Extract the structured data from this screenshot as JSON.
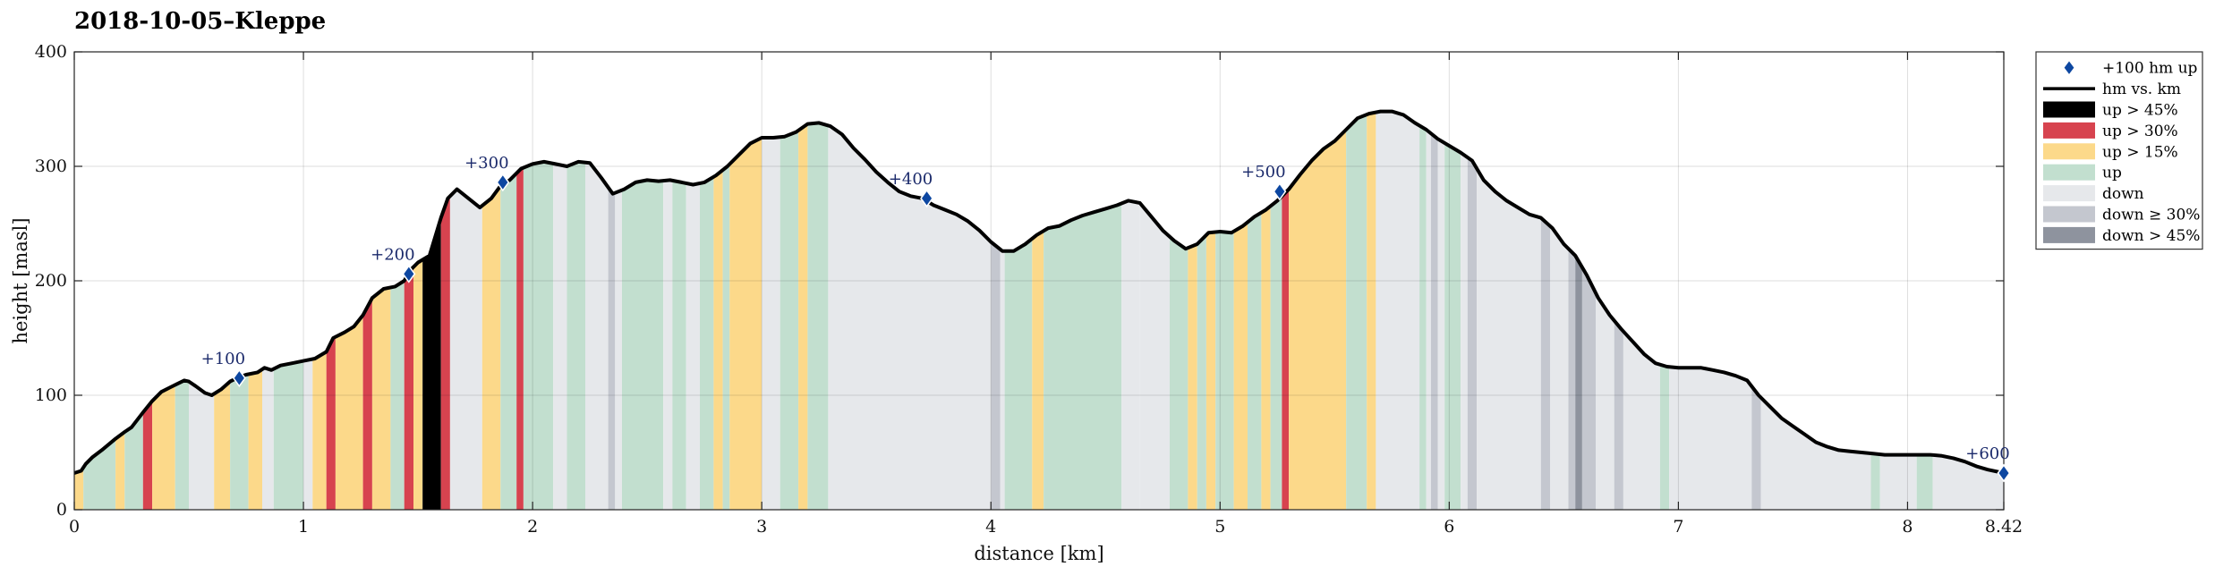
{
  "chart_data": {
    "type": "area",
    "title": "2018-10-05–Kleppe",
    "xlabel": "distance [km]",
    "ylabel": "height [masl]",
    "xlim": [
      0,
      8.42
    ],
    "ylim": [
      0,
      400
    ],
    "x_ticks": [
      0,
      1,
      2,
      3,
      4,
      5,
      6,
      7,
      8,
      8.42
    ],
    "x_tick_labels": [
      "0",
      "1",
      "2",
      "3",
      "4",
      "5",
      "6",
      "7",
      "8",
      "8.42"
    ],
    "y_ticks": [
      0,
      100,
      200,
      300,
      400
    ],
    "y_tick_labels": [
      "0",
      "100",
      "200",
      "300",
      "400"
    ],
    "grid": true,
    "legend_position": "outside-right-top",
    "legend": [
      {
        "label": "+100 hm up",
        "kind": "marker",
        "color": "#0d47a1"
      },
      {
        "label": "hm vs. km",
        "kind": "line",
        "color": "#000000"
      },
      {
        "label": "up > 45%",
        "kind": "patch",
        "color": "#000000"
      },
      {
        "label": "up > 30%",
        "kind": "patch",
        "color": "#d7434f"
      },
      {
        "label": "up > 15%",
        "kind": "patch",
        "color": "#fcd98a"
      },
      {
        "label": "up",
        "kind": "patch",
        "color": "#c2dfcf"
      },
      {
        "label": "down",
        "kind": "patch",
        "color": "#e6e8eb"
      },
      {
        "label": "down ≥ 30%",
        "kind": "patch",
        "color": "#c4c7cf"
      },
      {
        "label": "down > 45%",
        "kind": "patch",
        "color": "#8e939e"
      }
    ],
    "series": [
      {
        "name": "hm vs. km",
        "x": [
          0,
          0.03,
          0.05,
          0.08,
          0.12,
          0.18,
          0.22,
          0.25,
          0.3,
          0.34,
          0.38,
          0.42,
          0.45,
          0.48,
          0.5,
          0.53,
          0.57,
          0.6,
          0.64,
          0.68,
          0.72,
          0.75,
          0.8,
          0.83,
          0.86,
          0.9,
          0.95,
          1.0,
          1.05,
          1.1,
          1.13,
          1.18,
          1.22,
          1.26,
          1.3,
          1.35,
          1.4,
          1.44,
          1.47,
          1.5,
          1.55,
          1.6,
          1.63,
          1.67,
          1.72,
          1.77,
          1.82,
          1.86,
          1.9,
          1.95,
          2.0,
          2.05,
          2.1,
          2.15,
          2.2,
          2.25,
          2.3,
          2.35,
          2.4,
          2.45,
          2.5,
          2.55,
          2.6,
          2.65,
          2.7,
          2.75,
          2.8,
          2.85,
          2.9,
          2.95,
          3.0,
          3.05,
          3.1,
          3.15,
          3.2,
          3.25,
          3.3,
          3.35,
          3.4,
          3.45,
          3.5,
          3.55,
          3.6,
          3.65,
          3.7,
          3.75,
          3.8,
          3.85,
          3.9,
          3.95,
          4.0,
          4.05,
          4.1,
          4.15,
          4.2,
          4.25,
          4.3,
          4.35,
          4.4,
          4.45,
          4.5,
          4.55,
          4.6,
          4.65,
          4.7,
          4.75,
          4.8,
          4.85,
          4.9,
          4.95,
          5.0,
          5.05,
          5.1,
          5.15,
          5.2,
          5.25,
          5.3,
          5.35,
          5.4,
          5.45,
          5.5,
          5.55,
          5.6,
          5.65,
          5.7,
          5.75,
          5.8,
          5.85,
          5.9,
          5.95,
          6.0,
          6.05,
          6.1,
          6.15,
          6.2,
          6.25,
          6.3,
          6.35,
          6.4,
          6.45,
          6.5,
          6.55,
          6.6,
          6.65,
          6.7,
          6.75,
          6.8,
          6.85,
          6.9,
          6.95,
          7.0,
          7.05,
          7.1,
          7.15,
          7.2,
          7.25,
          7.3,
          7.35,
          7.4,
          7.45,
          7.5,
          7.55,
          7.6,
          7.65,
          7.7,
          7.75,
          7.8,
          7.85,
          7.9,
          7.95,
          8.0,
          8.05,
          8.1,
          8.15,
          8.2,
          8.25,
          8.3,
          8.35,
          8.42
        ],
        "y": [
          32,
          34,
          40,
          46,
          52,
          62,
          68,
          72,
          85,
          95,
          103,
          107,
          110,
          113,
          112,
          108,
          102,
          100,
          105,
          112,
          116,
          118,
          120,
          124,
          122,
          126,
          128,
          130,
          132,
          138,
          150,
          155,
          160,
          170,
          185,
          193,
          195,
          200,
          210,
          216,
          222,
          255,
          272,
          280,
          272,
          264,
          272,
          283,
          288,
          298,
          302,
          304,
          302,
          300,
          304,
          303,
          290,
          276,
          280,
          286,
          288,
          287,
          288,
          286,
          284,
          286,
          292,
          300,
          310,
          320,
          325,
          325,
          326,
          330,
          337,
          338,
          335,
          328,
          316,
          306,
          295,
          286,
          278,
          274,
          272,
          266,
          262,
          258,
          252,
          244,
          234,
          226,
          226,
          232,
          240,
          246,
          248,
          253,
          257,
          260,
          263,
          266,
          270,
          268,
          256,
          244,
          235,
          228,
          232,
          242,
          243,
          242,
          248,
          256,
          262,
          270,
          280,
          293,
          305,
          315,
          322,
          332,
          342,
          346,
          348,
          348,
          345,
          338,
          332,
          324,
          318,
          312,
          305,
          288,
          278,
          270,
          264,
          258,
          255,
          246,
          232,
          222,
          205,
          185,
          170,
          158,
          147,
          136,
          128,
          125,
          124,
          124,
          124,
          122,
          120,
          117,
          113,
          100,
          90,
          80,
          73,
          66,
          59,
          55,
          52,
          51,
          50,
          49,
          48,
          48,
          48,
          48,
          48,
          47,
          45,
          42,
          38,
          35,
          32
        ]
      },
      {
        "name": "+100 hm up",
        "x": [
          0.72,
          1.46,
          1.87,
          3.72,
          5.26,
          8.42
        ],
        "y": [
          115,
          206,
          286,
          272,
          278,
          32
        ],
        "labels": [
          "+100",
          "+200",
          "+300",
          "+400",
          "+500",
          "+600"
        ]
      }
    ],
    "gradient_bands": [
      {
        "x0": 0.0,
        "x1": 0.04,
        "class": "up > 15%"
      },
      {
        "x0": 0.04,
        "x1": 0.18,
        "class": "up"
      },
      {
        "x0": 0.18,
        "x1": 0.22,
        "class": "up > 15%"
      },
      {
        "x0": 0.22,
        "x1": 0.3,
        "class": "up"
      },
      {
        "x0": 0.3,
        "x1": 0.34,
        "class": "up > 30%"
      },
      {
        "x0": 0.34,
        "x1": 0.44,
        "class": "up > 15%"
      },
      {
        "x0": 0.44,
        "x1": 0.5,
        "class": "up"
      },
      {
        "x0": 0.5,
        "x1": 0.61,
        "class": "down"
      },
      {
        "x0": 0.61,
        "x1": 0.68,
        "class": "up > 15%"
      },
      {
        "x0": 0.68,
        "x1": 0.76,
        "class": "up"
      },
      {
        "x0": 0.76,
        "x1": 0.82,
        "class": "up > 15%"
      },
      {
        "x0": 0.82,
        "x1": 0.87,
        "class": "down"
      },
      {
        "x0": 0.87,
        "x1": 1.0,
        "class": "up"
      },
      {
        "x0": 1.0,
        "x1": 1.04,
        "class": "down"
      },
      {
        "x0": 1.04,
        "x1": 1.1,
        "class": "up > 15%"
      },
      {
        "x0": 1.1,
        "x1": 1.14,
        "class": "up > 30%"
      },
      {
        "x0": 1.14,
        "x1": 1.26,
        "class": "up > 15%"
      },
      {
        "x0": 1.26,
        "x1": 1.3,
        "class": "up > 30%"
      },
      {
        "x0": 1.3,
        "x1": 1.38,
        "class": "up > 15%"
      },
      {
        "x0": 1.38,
        "x1": 1.44,
        "class": "up"
      },
      {
        "x0": 1.44,
        "x1": 1.48,
        "class": "up > 30%"
      },
      {
        "x0": 1.48,
        "x1": 1.52,
        "class": "up > 15%"
      },
      {
        "x0": 1.52,
        "x1": 1.6,
        "class": "up > 45%"
      },
      {
        "x0": 1.6,
        "x1": 1.64,
        "class": "up > 30%"
      },
      {
        "x0": 1.64,
        "x1": 1.78,
        "class": "down"
      },
      {
        "x0": 1.78,
        "x1": 1.86,
        "class": "up > 15%"
      },
      {
        "x0": 1.86,
        "x1": 1.93,
        "class": "up"
      },
      {
        "x0": 1.93,
        "x1": 1.96,
        "class": "up > 30%"
      },
      {
        "x0": 1.96,
        "x1": 2.09,
        "class": "up"
      },
      {
        "x0": 2.09,
        "x1": 2.15,
        "class": "down"
      },
      {
        "x0": 2.15,
        "x1": 2.23,
        "class": "up"
      },
      {
        "x0": 2.23,
        "x1": 2.33,
        "class": "down"
      },
      {
        "x0": 2.33,
        "x1": 2.36,
        "class": "down ≥ 30%"
      },
      {
        "x0": 2.36,
        "x1": 2.39,
        "class": "down"
      },
      {
        "x0": 2.39,
        "x1": 2.57,
        "class": "up"
      },
      {
        "x0": 2.57,
        "x1": 2.61,
        "class": "down"
      },
      {
        "x0": 2.61,
        "x1": 2.67,
        "class": "up"
      },
      {
        "x0": 2.67,
        "x1": 2.73,
        "class": "down"
      },
      {
        "x0": 2.73,
        "x1": 2.79,
        "class": "up"
      },
      {
        "x0": 2.79,
        "x1": 2.83,
        "class": "up > 15%"
      },
      {
        "x0": 2.83,
        "x1": 2.86,
        "class": "up"
      },
      {
        "x0": 2.86,
        "x1": 3.0,
        "class": "up > 15%"
      },
      {
        "x0": 3.0,
        "x1": 3.08,
        "class": "down"
      },
      {
        "x0": 3.08,
        "x1": 3.16,
        "class": "up"
      },
      {
        "x0": 3.16,
        "x1": 3.2,
        "class": "up > 15%"
      },
      {
        "x0": 3.2,
        "x1": 3.29,
        "class": "up"
      },
      {
        "x0": 3.29,
        "x1": 4.0,
        "class": "down"
      },
      {
        "x0": 4.0,
        "x1": 4.04,
        "class": "down ≥ 30%"
      },
      {
        "x0": 4.04,
        "x1": 4.06,
        "class": "down"
      },
      {
        "x0": 4.06,
        "x1": 4.18,
        "class": "up"
      },
      {
        "x0": 4.18,
        "x1": 4.23,
        "class": "up > 15%"
      },
      {
        "x0": 4.23,
        "x1": 4.57,
        "class": "up"
      },
      {
        "x0": 4.57,
        "x1": 4.65,
        "class": "down"
      },
      {
        "x0": 4.65,
        "x1": 4.78,
        "class": "down"
      },
      {
        "x0": 4.78,
        "x1": 4.86,
        "class": "up"
      },
      {
        "x0": 4.86,
        "x1": 4.9,
        "class": "up > 15%"
      },
      {
        "x0": 4.9,
        "x1": 4.94,
        "class": "up"
      },
      {
        "x0": 4.94,
        "x1": 4.98,
        "class": "up > 15%"
      },
      {
        "x0": 4.98,
        "x1": 5.06,
        "class": "up"
      },
      {
        "x0": 5.06,
        "x1": 5.12,
        "class": "up > 15%"
      },
      {
        "x0": 5.12,
        "x1": 5.18,
        "class": "up"
      },
      {
        "x0": 5.18,
        "x1": 5.22,
        "class": "up > 15%"
      },
      {
        "x0": 5.22,
        "x1": 5.27,
        "class": "up"
      },
      {
        "x0": 5.27,
        "x1": 5.3,
        "class": "up > 30%"
      },
      {
        "x0": 5.3,
        "x1": 5.55,
        "class": "up > 15%"
      },
      {
        "x0": 5.55,
        "x1": 5.64,
        "class": "up"
      },
      {
        "x0": 5.64,
        "x1": 5.68,
        "class": "up > 15%"
      },
      {
        "x0": 5.68,
        "x1": 5.87,
        "class": "down"
      },
      {
        "x0": 5.87,
        "x1": 5.9,
        "class": "up"
      },
      {
        "x0": 5.9,
        "x1": 5.92,
        "class": "down"
      },
      {
        "x0": 5.92,
        "x1": 5.95,
        "class": "down ≥ 30%"
      },
      {
        "x0": 5.95,
        "x1": 5.98,
        "class": "down"
      },
      {
        "x0": 5.98,
        "x1": 6.05,
        "class": "up"
      },
      {
        "x0": 6.05,
        "x1": 6.08,
        "class": "down"
      },
      {
        "x0": 6.08,
        "x1": 6.12,
        "class": "down ≥ 30%"
      },
      {
        "x0": 6.12,
        "x1": 6.4,
        "class": "down"
      },
      {
        "x0": 6.4,
        "x1": 6.44,
        "class": "down ≥ 30%"
      },
      {
        "x0": 6.44,
        "x1": 6.52,
        "class": "down"
      },
      {
        "x0": 6.52,
        "x1": 6.55,
        "class": "down ≥ 30%"
      },
      {
        "x0": 6.55,
        "x1": 6.58,
        "class": "down > 45%"
      },
      {
        "x0": 6.58,
        "x1": 6.64,
        "class": "down ≥ 30%"
      },
      {
        "x0": 6.64,
        "x1": 6.72,
        "class": "down"
      },
      {
        "x0": 6.72,
        "x1": 6.76,
        "class": "down ≥ 30%"
      },
      {
        "x0": 6.76,
        "x1": 6.92,
        "class": "down"
      },
      {
        "x0": 6.92,
        "x1": 6.96,
        "class": "up"
      },
      {
        "x0": 6.96,
        "x1": 7.32,
        "class": "down"
      },
      {
        "x0": 7.32,
        "x1": 7.36,
        "class": "down ≥ 30%"
      },
      {
        "x0": 7.36,
        "x1": 7.84,
        "class": "down"
      },
      {
        "x0": 7.84,
        "x1": 7.88,
        "class": "up"
      },
      {
        "x0": 7.88,
        "x1": 8.04,
        "class": "down"
      },
      {
        "x0": 8.04,
        "x1": 8.11,
        "class": "up"
      },
      {
        "x0": 8.11,
        "x1": 8.42,
        "class": "down"
      }
    ]
  }
}
